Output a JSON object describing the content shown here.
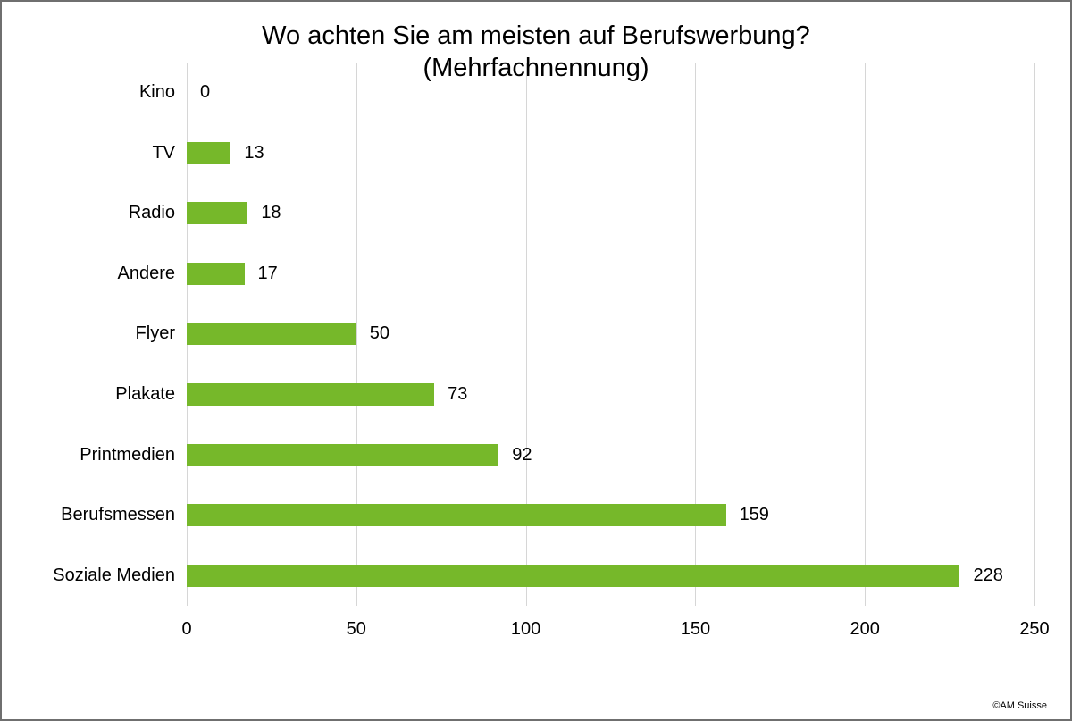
{
  "frame": {
    "credit": "©AM Suisse"
  },
  "chart_data": {
    "type": "bar",
    "orientation": "horizontal",
    "title": "Wo achten Sie am meisten auf Berufswerbung?",
    "subtitle": "(Mehrfachnennung)",
    "categories": [
      "Kino",
      "TV",
      "Radio",
      "Andere",
      "Flyer",
      "Plakate",
      "Printmedien",
      "Berufsmessen",
      "Soziale Medien"
    ],
    "values": [
      0,
      13,
      18,
      17,
      50,
      73,
      92,
      159,
      228
    ],
    "x_ticks": [
      0,
      50,
      100,
      150,
      200,
      250
    ],
    "xlim": [
      0,
      250
    ],
    "xlabel": "",
    "ylabel": "",
    "grid": true,
    "legend": false,
    "value_labels": true,
    "bar_color": "#76b82a",
    "gridline_color": "#d6d6d6"
  }
}
